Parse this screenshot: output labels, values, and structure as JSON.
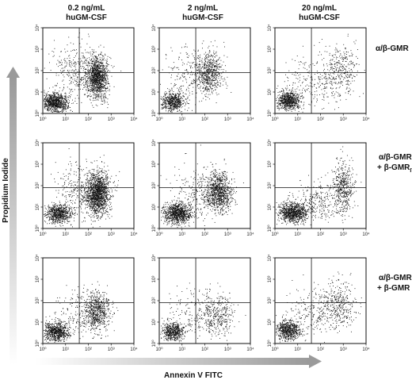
{
  "chart_data": {
    "type": "scatter",
    "columns": [
      {
        "line1": "0.2 ng/mL",
        "line2": "huGM-CSF"
      },
      {
        "line1": "2 ng/mL",
        "line2": "huGM-CSF"
      },
      {
        "line1": "20 ng/mL",
        "line2": "huGM-CSF"
      }
    ],
    "rows": [
      {
        "label_lines": [
          "α/β-GMR"
        ],
        "sub": ""
      },
      {
        "label_lines": [
          "α/β-GMR",
          "+ β-GMR"
        ],
        "sub": "IT"
      },
      {
        "label_lines": [
          "α/β-GMR",
          "+ β-GMR"
        ],
        "sub": ""
      }
    ],
    "xlabel": "Annexin V FITC",
    "ylabel": "Propidium Iodide",
    "x_scale": "log",
    "y_scale": "log",
    "xlim": [
      1,
      10000
    ],
    "ylim": [
      1,
      10000
    ],
    "x_ticks": [
      "10⁰",
      "10¹",
      "10²",
      "10³",
      "10⁴"
    ],
    "y_ticks": [
      "10⁰",
      "10¹",
      "10²",
      "10³",
      "10⁴"
    ],
    "quadrant_gate": {
      "x": 40,
      "y": 80
    },
    "panels": [
      {
        "row": 0,
        "col": 0,
        "clusters": [
          {
            "cx": 0.55,
            "cy": 0.5,
            "sx": 0.28,
            "sy": 0.22,
            "n": 900
          },
          {
            "cx": 2.4,
            "cy": 1.7,
            "sx": 0.22,
            "sy": 0.5,
            "n": 1200
          },
          {
            "cx": 1.6,
            "cy": 2.0,
            "sx": 0.6,
            "sy": 0.6,
            "n": 350
          }
        ]
      },
      {
        "row": 0,
        "col": 1,
        "clusters": [
          {
            "cx": 0.6,
            "cy": 0.55,
            "sx": 0.25,
            "sy": 0.22,
            "n": 600
          },
          {
            "cx": 2.2,
            "cy": 1.9,
            "sx": 0.28,
            "sy": 0.5,
            "n": 600
          },
          {
            "cx": 1.5,
            "cy": 1.8,
            "sx": 0.6,
            "sy": 0.6,
            "n": 220
          }
        ]
      },
      {
        "row": 0,
        "col": 2,
        "clusters": [
          {
            "cx": 0.6,
            "cy": 0.6,
            "sx": 0.26,
            "sy": 0.23,
            "n": 700
          },
          {
            "cx": 2.9,
            "cy": 2.0,
            "sx": 0.35,
            "sy": 0.6,
            "n": 300
          },
          {
            "cx": 1.7,
            "cy": 1.5,
            "sx": 0.7,
            "sy": 0.6,
            "n": 250
          }
        ]
      },
      {
        "row": 1,
        "col": 0,
        "clusters": [
          {
            "cx": 0.7,
            "cy": 0.7,
            "sx": 0.3,
            "sy": 0.22,
            "n": 700
          },
          {
            "cx": 2.4,
            "cy": 1.6,
            "sx": 0.25,
            "sy": 0.5,
            "n": 1400
          },
          {
            "cx": 1.7,
            "cy": 1.8,
            "sx": 0.6,
            "sy": 0.6,
            "n": 350
          }
        ]
      },
      {
        "row": 1,
        "col": 1,
        "clusters": [
          {
            "cx": 0.8,
            "cy": 0.7,
            "sx": 0.3,
            "sy": 0.23,
            "n": 900
          },
          {
            "cx": 2.6,
            "cy": 1.7,
            "sx": 0.3,
            "sy": 0.45,
            "n": 900
          },
          {
            "cx": 1.8,
            "cy": 1.6,
            "sx": 0.6,
            "sy": 0.6,
            "n": 300
          }
        ]
      },
      {
        "row": 1,
        "col": 2,
        "clusters": [
          {
            "cx": 0.8,
            "cy": 0.75,
            "sx": 0.32,
            "sy": 0.23,
            "n": 950
          },
          {
            "cx": 3.0,
            "cy": 2.0,
            "sx": 0.25,
            "sy": 0.6,
            "n": 450
          },
          {
            "cx": 2.0,
            "cy": 1.2,
            "sx": 0.6,
            "sy": 0.5,
            "n": 300
          }
        ]
      },
      {
        "row": 2,
        "col": 0,
        "clusters": [
          {
            "cx": 0.6,
            "cy": 0.55,
            "sx": 0.28,
            "sy": 0.22,
            "n": 750
          },
          {
            "cx": 2.4,
            "cy": 1.5,
            "sx": 0.3,
            "sy": 0.45,
            "n": 650
          },
          {
            "cx": 1.6,
            "cy": 1.4,
            "sx": 0.6,
            "sy": 0.6,
            "n": 200
          }
        ]
      },
      {
        "row": 2,
        "col": 1,
        "clusters": [
          {
            "cx": 0.6,
            "cy": 0.55,
            "sx": 0.26,
            "sy": 0.22,
            "n": 550
          },
          {
            "cx": 2.6,
            "cy": 1.4,
            "sx": 0.4,
            "sy": 0.5,
            "n": 350
          },
          {
            "cx": 1.6,
            "cy": 1.3,
            "sx": 0.7,
            "sy": 0.55,
            "n": 200
          }
        ]
      },
      {
        "row": 2,
        "col": 2,
        "clusters": [
          {
            "cx": 0.6,
            "cy": 0.6,
            "sx": 0.27,
            "sy": 0.22,
            "n": 650
          },
          {
            "cx": 2.8,
            "cy": 1.8,
            "sx": 0.4,
            "sy": 0.55,
            "n": 350
          },
          {
            "cx": 1.7,
            "cy": 1.4,
            "sx": 0.7,
            "sy": 0.6,
            "n": 250
          }
        ]
      }
    ]
  }
}
